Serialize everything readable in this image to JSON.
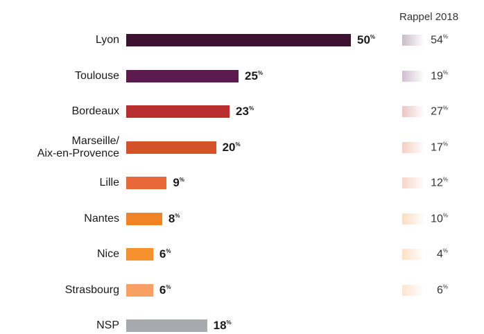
{
  "chart_data": {
    "type": "bar",
    "orientation": "horizontal",
    "categories": [
      "Lyon",
      "Toulouse",
      "Bordeaux",
      "Marseille/\nAix-en-Provence",
      "Lille",
      "Nantes",
      "Nice",
      "Strasbourg",
      "NSP"
    ],
    "values": [
      50,
      25,
      23,
      20,
      9,
      8,
      6,
      6,
      18
    ],
    "unit": "%",
    "colors": [
      "#3d1230",
      "#5c1a4f",
      "#b82e2e",
      "#d4522a",
      "#e8683a",
      "#f08424",
      "#f5922e",
      "#f7a062",
      "#a6a9ae"
    ],
    "recall": {
      "title": "Rappel 2018",
      "values": [
        54,
        19,
        27,
        17,
        12,
        10,
        4,
        6,
        null
      ]
    }
  }
}
